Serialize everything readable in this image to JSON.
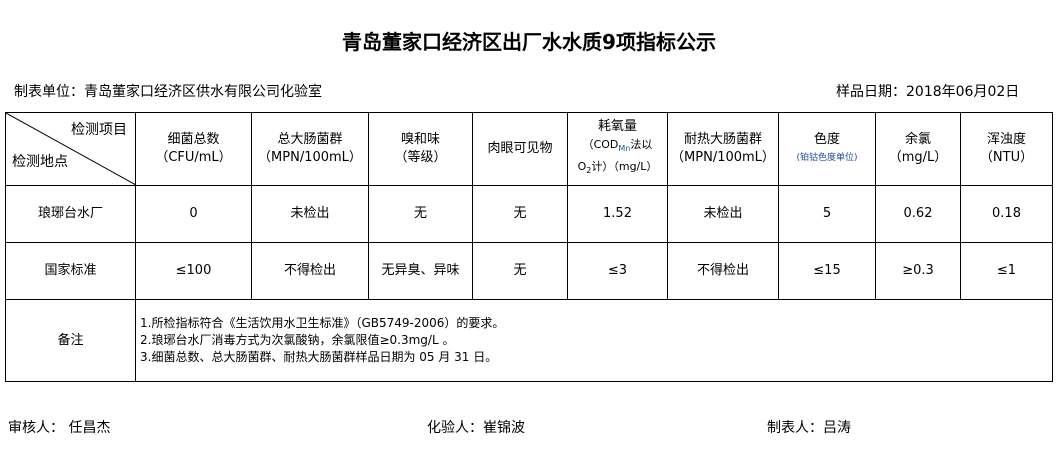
{
  "title": "青岛董家口经济区出厂水水质9项指标公示",
  "unit": "制表单位：青岛董家口经济区供水有限公司化验室",
  "date": "样品日期：2018年06月02日",
  "corner": {
    "top": "检测项目",
    "bottom": "检测地点"
  },
  "headers": [
    {
      "name": "细菌总数",
      "unit": "（CFU/mL）"
    },
    {
      "name": "总大肠菌群",
      "unit": "（MPN/100mL）"
    },
    {
      "name": "嗅和味",
      "unit": "（等级）"
    },
    {
      "name": "肉眼可见物",
      "unit": ""
    },
    {
      "name": "耗氧量",
      "unit": "（COD",
      "sub": "Mn",
      "unit2": "法以",
      "unit3": "O",
      "sub2": "2",
      "unit4": "计）（mg/L）"
    },
    {
      "name": "耐热大肠菌群",
      "unit": "（MPN/100mL）"
    },
    {
      "name": "色度",
      "unit": "(铂钴色度单位)"
    },
    {
      "name": "余氯",
      "unit": "（mg/L）"
    },
    {
      "name": "浑浊度",
      "unit": "（NTU）"
    }
  ],
  "rows": [
    {
      "label": "琅琊台水厂",
      "values": [
        "0",
        "未检出",
        "无",
        "无",
        "1.52",
        "未检出",
        "5",
        "0.62",
        "0.18"
      ]
    },
    {
      "label": "国家标准",
      "values": [
        "≤100",
        "不得检出",
        "无异臭、异味",
        "无",
        "≤3",
        "不得检出",
        "≤15",
        "≥0.3",
        "≤1"
      ]
    }
  ],
  "notes": {
    "label": "备注",
    "lines": [
      "1.所检指标符合《生活饮用水卫生标准》（GB5749-2006）的要求。",
      "2.琅琊台水厂消毒方式为次氯酸钠，余氯限值≥0.3mg/L 。",
      "3.细菌总数、总大肠菌群、耐热大肠菌群样品日期为 05 月 31 日。"
    ]
  },
  "footer": {
    "reviewer": "审核人：  任昌杰",
    "tester": "化验人：崔锦波",
    "maker": "制表人：吕涛"
  }
}
